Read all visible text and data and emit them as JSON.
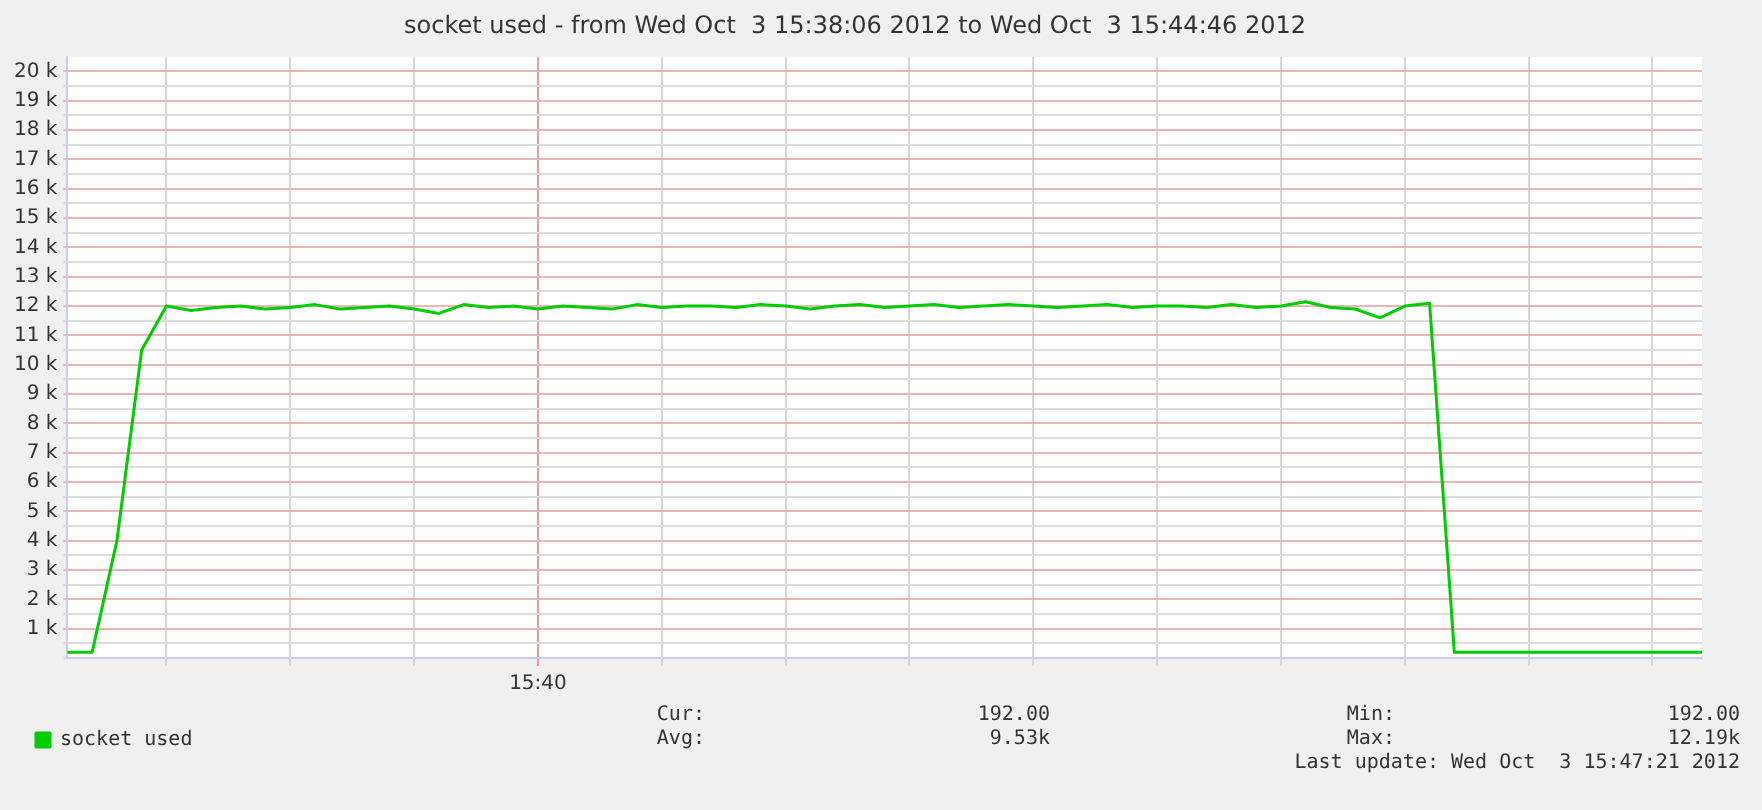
{
  "chart_data": {
    "type": "line",
    "title": "socket used - from Wed Oct  3 15:38:06 2012 to Wed Oct  3 15:44:46 2012",
    "categories": [
      null,
      null,
      null,
      null,
      null,
      null,
      null,
      null,
      null,
      null,
      null,
      null,
      null,
      null,
      null,
      null,
      null,
      null,
      null,
      "15:40",
      null,
      null,
      null,
      null,
      null,
      null,
      null,
      null,
      null,
      null,
      null,
      null,
      null,
      null,
      null,
      null,
      null,
      null,
      null,
      null,
      null,
      null,
      null,
      null,
      null,
      null,
      null,
      null,
      null,
      null,
      null,
      null,
      null,
      null,
      null,
      null,
      null,
      null,
      null,
      null,
      null,
      null,
      null,
      null,
      null,
      null,
      null
    ],
    "series": [
      {
        "name": "socket used",
        "color": "#00cc00",
        "values": [
          192,
          192,
          4000,
          10500,
          12000,
          11850,
          11950,
          12000,
          11900,
          11950,
          12050,
          11900,
          11950,
          12000,
          11900,
          11750,
          12050,
          11950,
          12000,
          11900,
          12000,
          11950,
          11900,
          12050,
          11950,
          12000,
          12000,
          11950,
          12050,
          12000,
          11900,
          12000,
          12050,
          11950,
          12000,
          12050,
          11950,
          12000,
          12050,
          12000,
          11950,
          12000,
          12050,
          11950,
          12000,
          12000,
          11950,
          12050,
          11950,
          12000,
          12150,
          11950,
          11900,
          11600,
          12000,
          12100,
          192,
          192,
          192,
          192,
          192,
          192,
          192,
          192,
          192,
          192,
          192
        ]
      }
    ],
    "ylim": [
      0,
      20500
    ],
    "yticks": [
      {
        "value": 0,
        "label": null
      },
      {
        "value": 500,
        "label": null
      },
      {
        "value": 1000,
        "label": "1 k"
      },
      {
        "value": 1500,
        "label": null
      },
      {
        "value": 2000,
        "label": "2 k"
      },
      {
        "value": 2500,
        "label": null
      },
      {
        "value": 3000,
        "label": "3 k"
      },
      {
        "value": 3500,
        "label": null
      },
      {
        "value": 4000,
        "label": "4 k"
      },
      {
        "value": 4500,
        "label": null
      },
      {
        "value": 5000,
        "label": "5 k"
      },
      {
        "value": 5500,
        "label": null
      },
      {
        "value": 6000,
        "label": "6 k"
      },
      {
        "value": 6500,
        "label": null
      },
      {
        "value": 7000,
        "label": "7 k"
      },
      {
        "value": 7500,
        "label": null
      },
      {
        "value": 8000,
        "label": "8 k"
      },
      {
        "value": 8500,
        "label": null
      },
      {
        "value": 9000,
        "label": "9 k"
      },
      {
        "value": 9500,
        "label": null
      },
      {
        "value": 10000,
        "label": "10 k"
      },
      {
        "value": 10500,
        "label": null
      },
      {
        "value": 11000,
        "label": "11 k"
      },
      {
        "value": 11500,
        "label": null
      },
      {
        "value": 12000,
        "label": "12 k"
      },
      {
        "value": 12500,
        "label": null
      },
      {
        "value": 13000,
        "label": "13 k"
      },
      {
        "value": 13500,
        "label": null
      },
      {
        "value": 14000,
        "label": "14 k"
      },
      {
        "value": 14500,
        "label": null
      },
      {
        "value": 15000,
        "label": "15 k"
      },
      {
        "value": 15500,
        "label": null
      },
      {
        "value": 16000,
        "label": "16 k"
      },
      {
        "value": 16500,
        "label": null
      },
      {
        "value": 17000,
        "label": "17 k"
      },
      {
        "value": 17500,
        "label": null
      },
      {
        "value": 18000,
        "label": "18 k"
      },
      {
        "value": 18500,
        "label": null
      },
      {
        "value": 19000,
        "label": "19 k"
      },
      {
        "value": 19500,
        "label": null
      },
      {
        "value": 20000,
        "label": "20 k"
      }
    ],
    "grid": true,
    "legend": "bottom left",
    "marker": "none",
    "line_style": "solid",
    "annotations": [
      "Cur:",
      "192.00",
      "Min:",
      "192.00",
      "Avg:",
      "9.53k",
      "Max:",
      "12.19k",
      "Last update: Wed Oct  3 15:47:21 2012"
    ]
  }
}
